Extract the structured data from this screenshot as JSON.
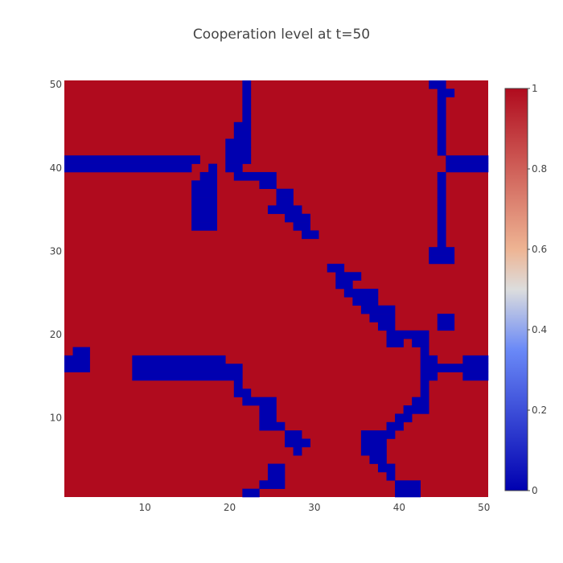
{
  "chart_data": {
    "type": "heatmap",
    "title": "Cooperation level at t=50",
    "xlabel": "",
    "ylabel": "",
    "x_range": [
      0.5,
      50.5
    ],
    "y_range": [
      0.5,
      50.5
    ],
    "x_ticks": [
      10,
      20,
      30,
      40,
      50
    ],
    "y_ticks": [
      10,
      20,
      30,
      40,
      50
    ],
    "colorbar": {
      "range": [
        0,
        1
      ],
      "ticks": [
        0,
        0.2,
        0.4,
        0.6,
        0.8,
        1
      ],
      "colorscale": [
        [
          0,
          "#0000b0"
        ],
        [
          0.35,
          "#6a89f7"
        ],
        [
          0.5,
          "#dcdddd"
        ],
        [
          0.6,
          "#eeb493"
        ],
        [
          1,
          "#b00b1e"
        ]
      ]
    },
    "background_value": 1,
    "grid_size": [
      50,
      50
    ],
    "defector_runs": [
      [
        50,
        44,
        45
      ],
      [
        50,
        22,
        22
      ],
      [
        49,
        22,
        22
      ],
      [
        49,
        45,
        46
      ],
      [
        48,
        22,
        22
      ],
      [
        48,
        45,
        45
      ],
      [
        47,
        22,
        22
      ],
      [
        47,
        45,
        45
      ],
      [
        46,
        22,
        22
      ],
      [
        46,
        45,
        45
      ],
      [
        45,
        21,
        22
      ],
      [
        45,
        45,
        45
      ],
      [
        44,
        21,
        22
      ],
      [
        44,
        45,
        45
      ],
      [
        43,
        20,
        22
      ],
      [
        43,
        45,
        45
      ],
      [
        42,
        20,
        22
      ],
      [
        42,
        45,
        45
      ],
      [
        41,
        1,
        16
      ],
      [
        41,
        20,
        22
      ],
      [
        41,
        46,
        50
      ],
      [
        40,
        1,
        15
      ],
      [
        40,
        18,
        18
      ],
      [
        40,
        20,
        21
      ],
      [
        40,
        46,
        50
      ],
      [
        39,
        17,
        18
      ],
      [
        39,
        21,
        25
      ],
      [
        39,
        45,
        45
      ],
      [
        38,
        16,
        18
      ],
      [
        38,
        24,
        25
      ],
      [
        38,
        45,
        45
      ],
      [
        37,
        16,
        18
      ],
      [
        37,
        26,
        27
      ],
      [
        37,
        45,
        45
      ],
      [
        36,
        16,
        18
      ],
      [
        36,
        26,
        27
      ],
      [
        36,
        45,
        45
      ],
      [
        35,
        16,
        18
      ],
      [
        35,
        25,
        28
      ],
      [
        35,
        45,
        45
      ],
      [
        34,
        16,
        18
      ],
      [
        34,
        27,
        29
      ],
      [
        34,
        45,
        45
      ],
      [
        33,
        16,
        18
      ],
      [
        33,
        28,
        29
      ],
      [
        33,
        45,
        45
      ],
      [
        32,
        29,
        30
      ],
      [
        32,
        45,
        45
      ],
      [
        31,
        45,
        45
      ],
      [
        30,
        44,
        46
      ],
      [
        29,
        44,
        46
      ],
      [
        28,
        32,
        33
      ],
      [
        27,
        33,
        35
      ],
      [
        26,
        33,
        34
      ],
      [
        25,
        34,
        37
      ],
      [
        24,
        35,
        37
      ],
      [
        23,
        36,
        39
      ],
      [
        22,
        37,
        39
      ],
      [
        22,
        45,
        46
      ],
      [
        21,
        38,
        39
      ],
      [
        21,
        45,
        46
      ],
      [
        20,
        39,
        43
      ],
      [
        19,
        39,
        40
      ],
      [
        19,
        42,
        43
      ],
      [
        18,
        2,
        3
      ],
      [
        18,
        43,
        43
      ],
      [
        17,
        1,
        3
      ],
      [
        17,
        9,
        19
      ],
      [
        17,
        43,
        44
      ],
      [
        17,
        48,
        50
      ],
      [
        16,
        1,
        3
      ],
      [
        16,
        9,
        21
      ],
      [
        16,
        43,
        50
      ],
      [
        15,
        9,
        21
      ],
      [
        15,
        43,
        44
      ],
      [
        15,
        48,
        50
      ],
      [
        14,
        21,
        21
      ],
      [
        14,
        43,
        43
      ],
      [
        13,
        21,
        22
      ],
      [
        13,
        43,
        43
      ],
      [
        12,
        22,
        25
      ],
      [
        12,
        42,
        43
      ],
      [
        11,
        24,
        25
      ],
      [
        11,
        41,
        43
      ],
      [
        10,
        24,
        25
      ],
      [
        10,
        40,
        41
      ],
      [
        9,
        24,
        26
      ],
      [
        9,
        39,
        40
      ],
      [
        8,
        27,
        28
      ],
      [
        8,
        36,
        39
      ],
      [
        7,
        27,
        29
      ],
      [
        7,
        36,
        38
      ],
      [
        6,
        28,
        28
      ],
      [
        6,
        36,
        38
      ],
      [
        5,
        37,
        38
      ],
      [
        4,
        25,
        26
      ],
      [
        4,
        38,
        39
      ],
      [
        3,
        25,
        26
      ],
      [
        3,
        39,
        39
      ],
      [
        2,
        24,
        26
      ],
      [
        2,
        40,
        42
      ],
      [
        1,
        22,
        23
      ],
      [
        1,
        40,
        42
      ],
      [
        0,
        22,
        22
      ],
      [
        0,
        40,
        42
      ]
    ]
  }
}
